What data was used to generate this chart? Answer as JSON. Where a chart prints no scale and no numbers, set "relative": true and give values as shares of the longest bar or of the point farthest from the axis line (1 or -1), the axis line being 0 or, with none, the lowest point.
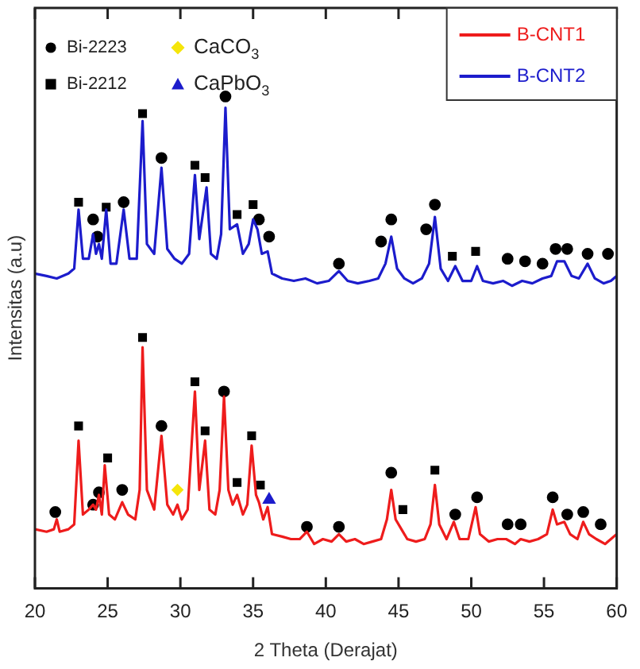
{
  "chart_data": {
    "type": "line",
    "relative": true,
    "xlabel": "2 Theta (Derajat)",
    "ylabel": "Intensitas (a.u)",
    "xlim": [
      20,
      60
    ],
    "xticks": [
      20,
      25,
      30,
      35,
      40,
      45,
      50,
      55,
      60
    ],
    "legend": "top right",
    "grid": false,
    "line_style": "solid",
    "series": [
      {
        "name": "B-CNT1",
        "color": "#ee1c1c",
        "marker": "none",
        "x": [
          20,
          20.8,
          21.3,
          21.5,
          21.7,
          22.3,
          22.7,
          23.0,
          23.3,
          23.7,
          24.0,
          24.2,
          24.4,
          24.6,
          24.8,
          25.1,
          25.5,
          26.0,
          26.4,
          26.9,
          27.2,
          27.4,
          27.7,
          28.2,
          28.7,
          29.1,
          29.5,
          29.8,
          30.1,
          30.5,
          31.0,
          31.3,
          31.7,
          32.0,
          32.4,
          32.7,
          33.0,
          33.3,
          33.6,
          33.9,
          34.3,
          34.6,
          34.9,
          35.2,
          35.4,
          35.7,
          36.0,
          36.3,
          37,
          37.6,
          38.2,
          38.7,
          39.2,
          39.8,
          40.4,
          40.9,
          41.4,
          42,
          42.6,
          43.2,
          43.8,
          44.2,
          44.5,
          44.8,
          45.2,
          45.6,
          46.2,
          46.8,
          47.2,
          47.5,
          47.8,
          48.3,
          48.8,
          49.2,
          49.8,
          50.3,
          50.6,
          51.2,
          51.8,
          52.4,
          53,
          53.4,
          54,
          54.6,
          55.2,
          55.6,
          55.9,
          56.4,
          56.8,
          57.3,
          57.7,
          58.1,
          58.6,
          59.2,
          59.6,
          60
        ],
        "values": [
          0.12,
          0.115,
          0.12,
          0.14,
          0.115,
          0.12,
          0.13,
          0.3,
          0.15,
          0.16,
          0.17,
          0.16,
          0.19,
          0.15,
          0.25,
          0.15,
          0.14,
          0.175,
          0.15,
          0.14,
          0.2,
          0.49,
          0.2,
          0.16,
          0.31,
          0.17,
          0.15,
          0.17,
          0.14,
          0.16,
          0.4,
          0.2,
          0.3,
          0.16,
          0.15,
          0.2,
          0.39,
          0.2,
          0.17,
          0.19,
          0.15,
          0.17,
          0.29,
          0.19,
          0.175,
          0.14,
          0.165,
          0.11,
          0.105,
          0.1,
          0.1,
          0.115,
          0.09,
          0.1,
          0.095,
          0.11,
          0.095,
          0.1,
          0.09,
          0.095,
          0.1,
          0.14,
          0.2,
          0.14,
          0.12,
          0.1,
          0.095,
          0.1,
          0.13,
          0.21,
          0.13,
          0.1,
          0.135,
          0.1,
          0.1,
          0.165,
          0.11,
          0.095,
          0.1,
          0.1,
          0.09,
          0.1,
          0.095,
          0.1,
          0.11,
          0.16,
          0.13,
          0.135,
          0.11,
          0.1,
          0.135,
          0.11,
          0.1,
          0.09,
          0.1,
          0.11
        ]
      },
      {
        "name": "B-CNT2",
        "color": "#1c1ccc",
        "marker": "none",
        "x": [
          20,
          20.8,
          21.5,
          22.3,
          22.7,
          23.0,
          23.3,
          23.7,
          24.0,
          24.2,
          24.4,
          24.6,
          24.9,
          25.2,
          25.6,
          26.1,
          26.5,
          27.0,
          27.4,
          27.7,
          28.2,
          28.7,
          29.1,
          29.6,
          30.1,
          30.6,
          31.0,
          31.3,
          31.8,
          32.1,
          32.5,
          32.8,
          33.1,
          33.4,
          33.9,
          34.3,
          34.7,
          35.0,
          35.3,
          35.6,
          36.0,
          36.3,
          37,
          37.8,
          38.6,
          39.4,
          40.2,
          40.9,
          41.5,
          42.2,
          43,
          43.6,
          44.1,
          44.5,
          44.9,
          45.4,
          46.0,
          46.6,
          47.1,
          47.5,
          47.9,
          48.4,
          48.9,
          49.4,
          50.0,
          50.4,
          50.8,
          51.5,
          52.2,
          52.8,
          53.5,
          54.2,
          54.9,
          55.5,
          55.9,
          56.4,
          56.9,
          57.4,
          58.0,
          58.5,
          59.1,
          59.6,
          60
        ],
        "values": [
          0.64,
          0.635,
          0.63,
          0.64,
          0.65,
          0.77,
          0.67,
          0.67,
          0.72,
          0.68,
          0.7,
          0.67,
          0.77,
          0.66,
          0.66,
          0.77,
          0.67,
          0.67,
          0.95,
          0.7,
          0.68,
          0.855,
          0.69,
          0.67,
          0.66,
          0.68,
          0.84,
          0.71,
          0.815,
          0.68,
          0.67,
          0.72,
          0.977,
          0.73,
          0.74,
          0.68,
          0.7,
          0.75,
          0.73,
          0.68,
          0.685,
          0.64,
          0.63,
          0.625,
          0.63,
          0.62,
          0.625,
          0.645,
          0.625,
          0.62,
          0.625,
          0.63,
          0.66,
          0.715,
          0.65,
          0.63,
          0.62,
          0.63,
          0.66,
          0.755,
          0.65,
          0.625,
          0.655,
          0.625,
          0.625,
          0.655,
          0.625,
          0.62,
          0.625,
          0.615,
          0.625,
          0.62,
          0.63,
          0.635,
          0.665,
          0.665,
          0.635,
          0.63,
          0.66,
          0.63,
          0.62,
          0.625,
          0.635
        ]
      },
      {
        "name": "Bi-2223",
        "type": "scatter",
        "color": "#000000",
        "marker": "circle",
        "x": [
          21.4,
          24.0,
          24.4,
          26.0,
          28.7,
          33.0,
          38.7,
          40.9,
          44.5,
          48.9,
          50.4,
          52.5,
          53.4,
          55.6,
          56.6,
          57.7,
          58.9,
          24.0,
          24.3,
          26.1,
          28.7,
          33.1,
          35.4,
          36.1,
          40.9,
          43.8,
          44.5,
          46.9,
          47.5,
          52.5,
          53.7,
          54.9,
          55.8,
          56.6,
          58.0,
          59.4
        ],
        "values": [
          0.155,
          0.17,
          0.195,
          0.2,
          0.33,
          0.4,
          0.125,
          0.125,
          0.235,
          0.15,
          0.185,
          0.13,
          0.13,
          0.185,
          0.15,
          0.155,
          0.13,
          0.75,
          0.715,
          0.785,
          0.875,
          1,
          0.75,
          0.715,
          0.66,
          0.705,
          0.75,
          0.73,
          0.78,
          0.67,
          0.665,
          0.66,
          0.69,
          0.69,
          0.68,
          0.68
        ]
      },
      {
        "name": "Bi-2212",
        "type": "scatter",
        "color": "#000000",
        "marker": "square",
        "x": [
          23.0,
          25.0,
          27.4,
          31.0,
          31.7,
          33.9,
          34.9,
          35.5,
          45.3,
          47.5,
          23.0,
          24.9,
          27.4,
          31.0,
          31.7,
          33.9,
          35.0,
          48.7,
          50.3
        ],
        "values": [
          0.33,
          0.265,
          0.51,
          0.42,
          0.32,
          0.215,
          0.31,
          0.21,
          0.16,
          0.24,
          0.785,
          0.775,
          0.965,
          0.86,
          0.835,
          0.76,
          0.78,
          0.675,
          0.685
        ]
      },
      {
        "name": "CaCO$_{3}$",
        "type": "scatter",
        "color": "#f5e50a",
        "marker": "diamond",
        "x": [
          29.8
        ],
        "values": [
          0.2
        ]
      },
      {
        "name": "CaPbO$_{3}$",
        "type": "scatter",
        "color": "#1c1ccc",
        "marker": "triangle",
        "x": [
          36.1
        ],
        "values": [
          0.18
        ]
      }
    ]
  }
}
